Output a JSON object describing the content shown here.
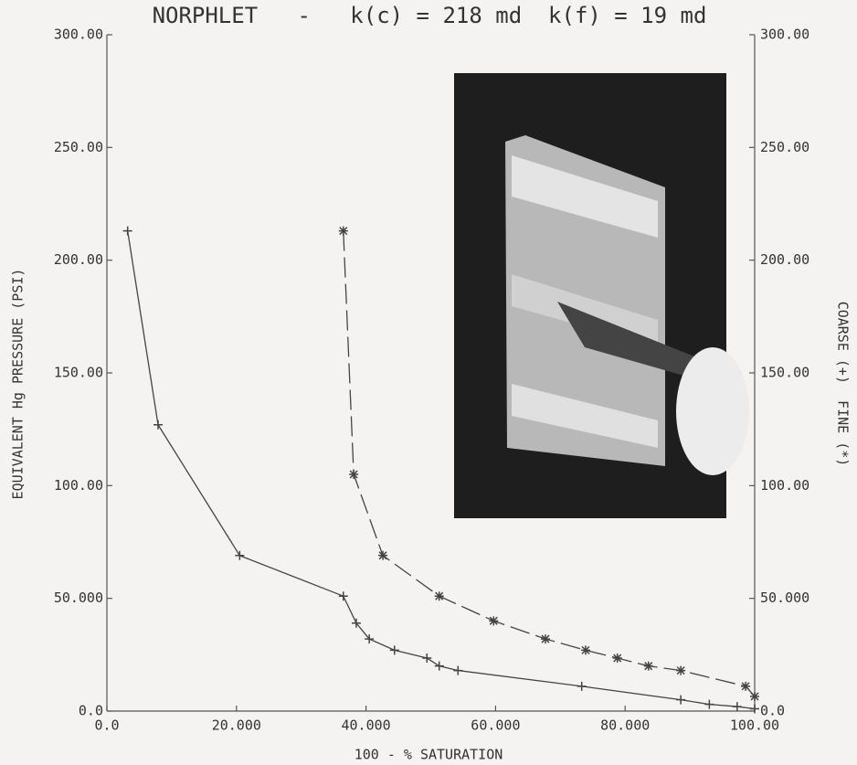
{
  "chart_data": {
    "type": "line",
    "title": "NORPHLET   -   k(c) = 218 md  k(f) = 19 md",
    "xlabel": "100 - % SATURATION",
    "ylabel": "EQUIVALENT Hg PRESSURE (PSI)",
    "y2label": "COARSE (+)  FINE (*)",
    "xlim": [
      0,
      100
    ],
    "ylim": [
      0,
      300
    ],
    "y2lim": [
      0,
      300
    ],
    "xticks": [
      {
        "value": 0,
        "label": "0.0"
      },
      {
        "value": 20,
        "label": "20.000"
      },
      {
        "value": 40,
        "label": "40.000"
      },
      {
        "value": 60,
        "label": "60.000"
      },
      {
        "value": 80,
        "label": "80.000"
      },
      {
        "value": 100,
        "label": "100.00"
      }
    ],
    "yticks": [
      {
        "value": 0,
        "label": "0.0"
      },
      {
        "value": 50,
        "label": "50.000"
      },
      {
        "value": 100,
        "label": "100.00"
      },
      {
        "value": 150,
        "label": "150.00"
      },
      {
        "value": 200,
        "label": "200.00"
      },
      {
        "value": 250,
        "label": "250.00"
      },
      {
        "value": 300,
        "label": "300.00"
      }
    ],
    "y2ticks": [
      {
        "value": 0,
        "label": "0.0"
      },
      {
        "value": 50,
        "label": "50.000"
      },
      {
        "value": 100,
        "label": "100.00"
      },
      {
        "value": 150,
        "label": "150.00"
      },
      {
        "value": 200,
        "label": "200.00"
      },
      {
        "value": 250,
        "label": "250.00"
      },
      {
        "value": 300,
        "label": "300.00"
      }
    ],
    "series": [
      {
        "color": "#444444",
        "marker": "plus",
        "dashed": false,
        "x": [
          3.2,
          7.9,
          20.5,
          36.5,
          38.5,
          40.5,
          44.4,
          49.4,
          51.3,
          54.2,
          73.3,
          88.6,
          93,
          97.3,
          100
        ],
        "values": [
          213,
          127,
          69,
          51,
          39,
          32,
          27,
          23.5,
          20,
          18,
          11,
          5,
          3,
          2,
          1
        ]
      },
      {
        "color": "#444444",
        "marker": "asterisk",
        "dashed": true,
        "x": [
          36.5,
          38.1,
          42.6,
          51.3,
          59.7,
          67.7,
          73.9,
          78.8,
          83.6,
          88.6,
          98.6,
          100
        ],
        "values": [
          213,
          105,
          69,
          51,
          40,
          32,
          27,
          23.5,
          20,
          18,
          11,
          6.5
        ]
      }
    ]
  }
}
